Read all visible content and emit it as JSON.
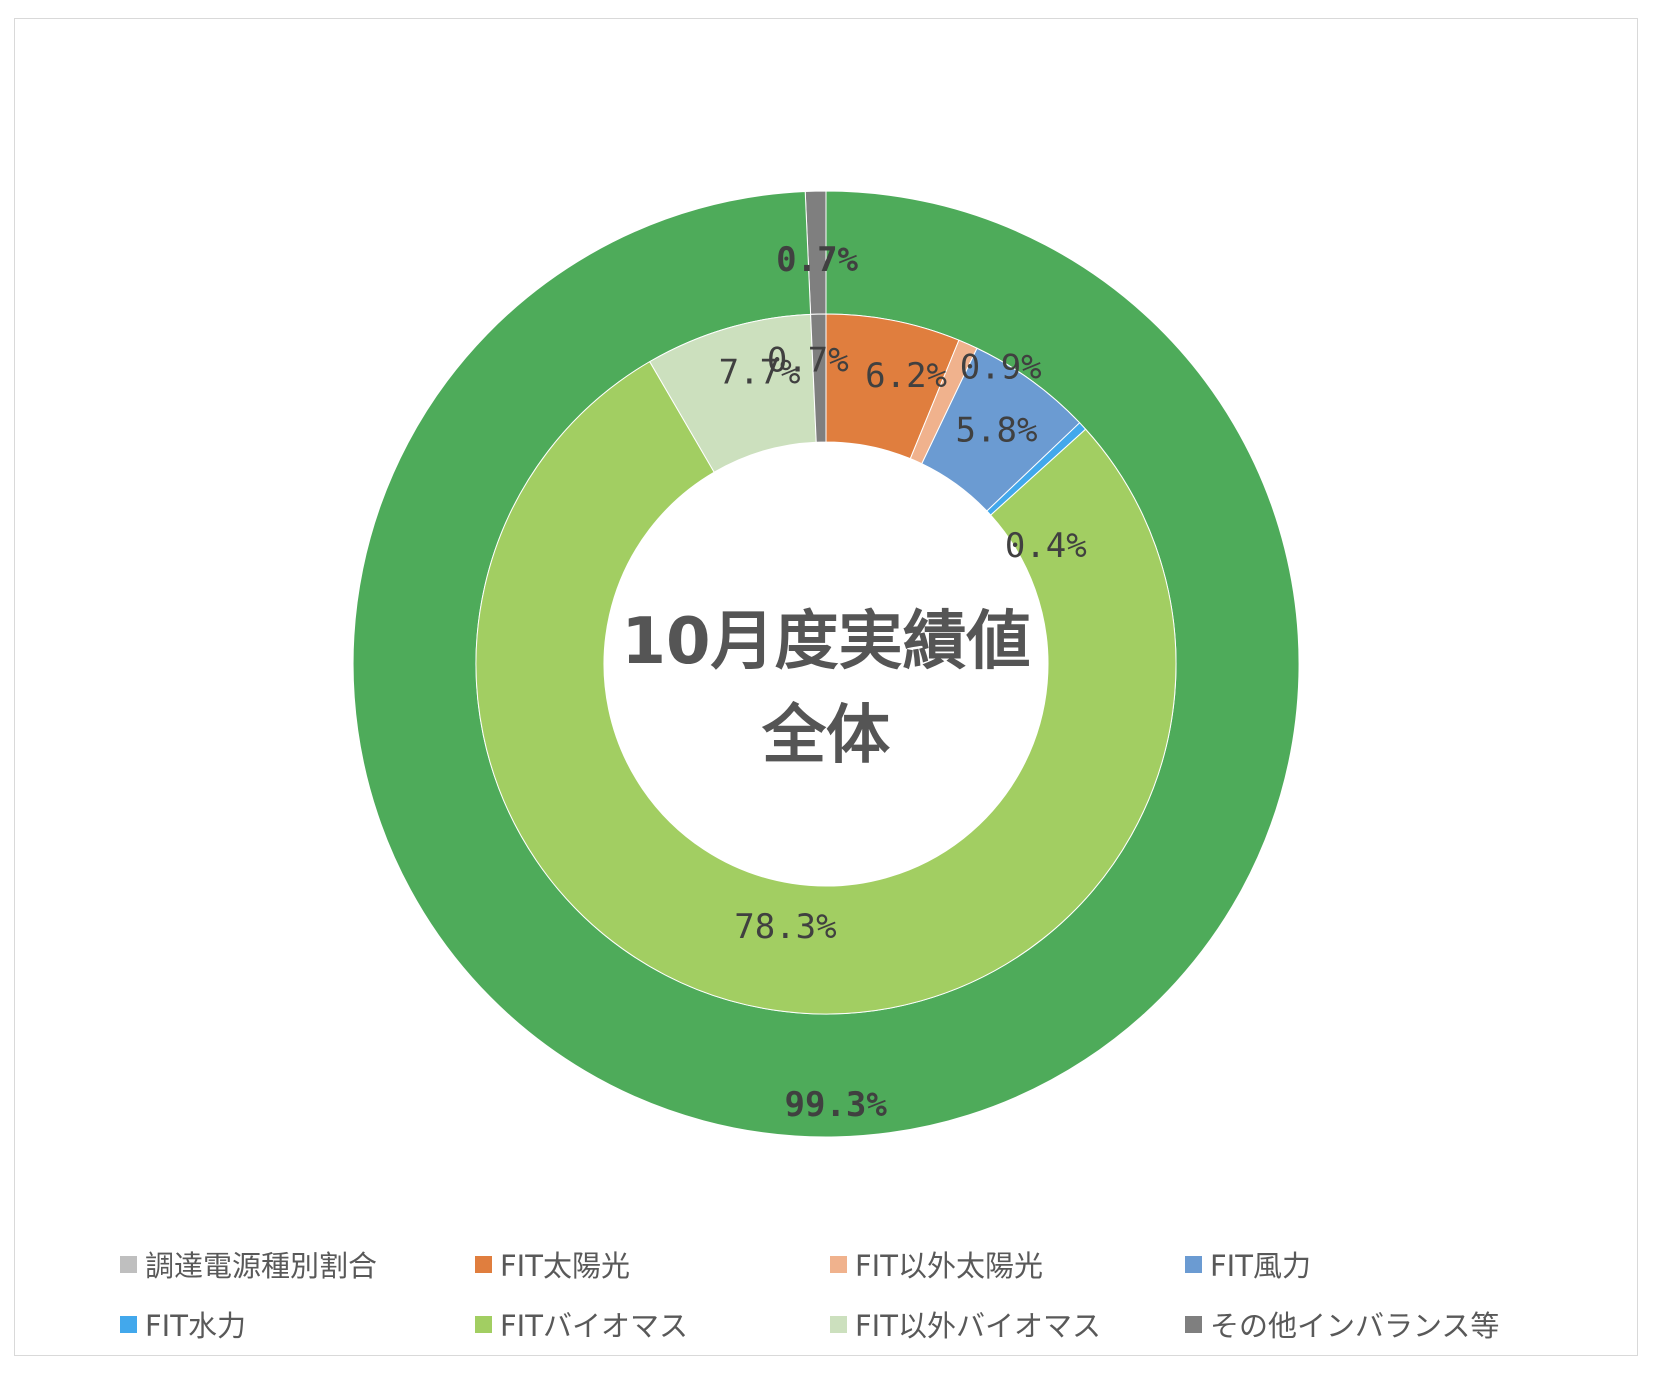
{
  "chart_data": {
    "type": "donut",
    "title_lines": [
      "10月度実績値",
      "全体"
    ],
    "rings": [
      {
        "name": "outer",
        "slices": [
          {
            "legend_index": 0,
            "value": 99.3,
            "label": "99.3%",
            "color": "#4EAB5A"
          },
          {
            "legend_index": 7,
            "value": 0.7,
            "label": "0.7%",
            "color": "#7F7F7F"
          }
        ]
      },
      {
        "name": "inner",
        "slices": [
          {
            "legend_index": 1,
            "value": 6.2,
            "label": "6.2%",
            "color": "#E07E3E"
          },
          {
            "legend_index": 2,
            "value": 0.9,
            "label": "0.9%",
            "color": "#F0B28D"
          },
          {
            "legend_index": 3,
            "value": 5.8,
            "label": "5.8%",
            "color": "#6B9BD2"
          },
          {
            "legend_index": 4,
            "value": 0.4,
            "label": "0.4%",
            "color": "#42A8EC"
          },
          {
            "legend_index": 5,
            "value": 78.3,
            "label": "78.3%",
            "color": "#A2CE62"
          },
          {
            "legend_index": 6,
            "value": 7.7,
            "label": "7.7%",
            "color": "#CCE0BE"
          },
          {
            "legend_index": 7,
            "value": 0.7,
            "label": "0.7%",
            "color": "#7F7F7F"
          }
        ]
      }
    ],
    "legend": [
      {
        "label": "調達電源種別割合",
        "color": "#BFBFBF"
      },
      {
        "label": "FIT太陽光",
        "color": "#E07E3E"
      },
      {
        "label": "FIT以外太陽光",
        "color": "#F0B28D"
      },
      {
        "label": "FIT風力",
        "color": "#6B9BD2"
      },
      {
        "label": "FIT水力",
        "color": "#42A8EC"
      },
      {
        "label": "FITバイオマス",
        "color": "#A2CE62"
      },
      {
        "label": "FIT以外バイオマス",
        "color": "#CCE0BE"
      },
      {
        "label": "その他インバランス等",
        "color": "#7F7F7F"
      }
    ],
    "legend_position": "bottom"
  }
}
